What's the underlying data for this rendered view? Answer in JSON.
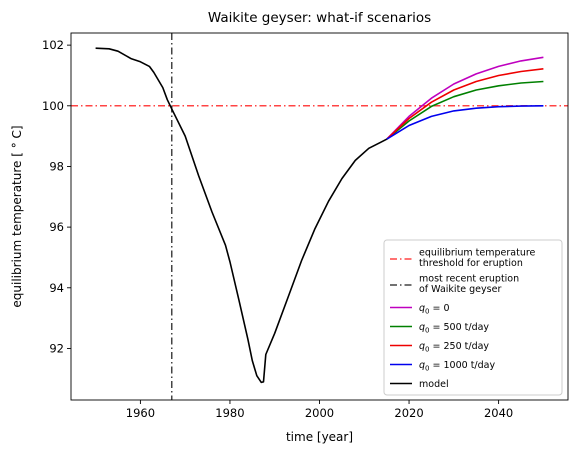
{
  "chart_data": {
    "type": "line",
    "title": "Waikite geyser: what-if scenarios",
    "xlabel": "time [year]",
    "ylabel": "equilibrium temperature [$^\\circ$C]",
    "ylabel_display": "equilibrium temperature [ ° C]",
    "xlim": [
      1944.5,
      2055.5
    ],
    "ylim": [
      90.3,
      102.4
    ],
    "xticks": [
      1960,
      1980,
      2000,
      2020,
      2040
    ],
    "yticks": [
      92,
      94,
      96,
      98,
      100,
      102
    ],
    "grid": false,
    "legend_position": "lower-right",
    "reference_lines": [
      {
        "orientation": "horizontal",
        "value": 100,
        "color": "#ff4444",
        "style": "dashdot",
        "label_lines": [
          "equilibrium temperature",
          "threshold for eruption"
        ]
      },
      {
        "orientation": "vertical",
        "value": 1967,
        "color": "#444444",
        "style": "dashdot",
        "label_lines": [
          "most recent eruption",
          "of Waikite geyser"
        ]
      }
    ],
    "series": [
      {
        "name": "q0 = 0",
        "legend_main": "q",
        "legend_sub": "0",
        "legend_rest": " = 0",
        "color": "#bf00bf",
        "x": [
          2015,
          2020,
          2025,
          2030,
          2035,
          2040,
          2045,
          2050
        ],
        "y": [
          98.9,
          99.65,
          100.25,
          100.72,
          101.05,
          101.3,
          101.48,
          101.6
        ]
      },
      {
        "name": "q0 = 500 t/day",
        "legend_main": "q",
        "legend_sub": "0",
        "legend_rest": " = 500 t/day",
        "color": "#008000",
        "x": [
          2015,
          2020,
          2025,
          2030,
          2035,
          2040,
          2045,
          2050
        ],
        "y": [
          98.9,
          99.5,
          99.98,
          100.3,
          100.52,
          100.66,
          100.75,
          100.8
        ]
      },
      {
        "name": "q0 = 250 t/day",
        "legend_main": "q",
        "legend_sub": "0",
        "legend_rest": " = 250 t/day",
        "color": "#ee0000",
        "x": [
          2015,
          2020,
          2025,
          2030,
          2035,
          2040,
          2045,
          2050
        ],
        "y": [
          98.9,
          99.58,
          100.12,
          100.52,
          100.8,
          101.0,
          101.13,
          101.22
        ]
      },
      {
        "name": "q0 = 1000 t/day",
        "legend_main": "q",
        "legend_sub": "0",
        "legend_rest": " = 1000 t/day",
        "color": "#0000ee",
        "x": [
          2015,
          2020,
          2025,
          2030,
          2035,
          2040,
          2045,
          2050
        ],
        "y": [
          98.9,
          99.35,
          99.65,
          99.83,
          99.92,
          99.97,
          99.99,
          100.0
        ]
      },
      {
        "name": "model",
        "legend_main": "model",
        "legend_sub": "",
        "legend_rest": "",
        "color": "#000000",
        "x": [
          1950,
          1953,
          1955,
          1958,
          1960,
          1962,
          1963,
          1965,
          1966,
          1967,
          1970,
          1973,
          1976,
          1979,
          1980,
          1982,
          1984,
          1985,
          1986,
          1987,
          1987.5,
          1988,
          1990,
          1993,
          1996,
          1999,
          2002,
          2005,
          2008,
          2011,
          2015
        ],
        "y": [
          101.9,
          101.88,
          101.8,
          101.55,
          101.45,
          101.3,
          101.1,
          100.6,
          100.2,
          99.9,
          99.0,
          97.7,
          96.5,
          95.4,
          94.85,
          93.6,
          92.3,
          91.6,
          91.1,
          90.88,
          90.9,
          91.8,
          92.5,
          93.7,
          94.9,
          95.95,
          96.85,
          97.6,
          98.2,
          98.6,
          98.9
        ]
      }
    ]
  }
}
